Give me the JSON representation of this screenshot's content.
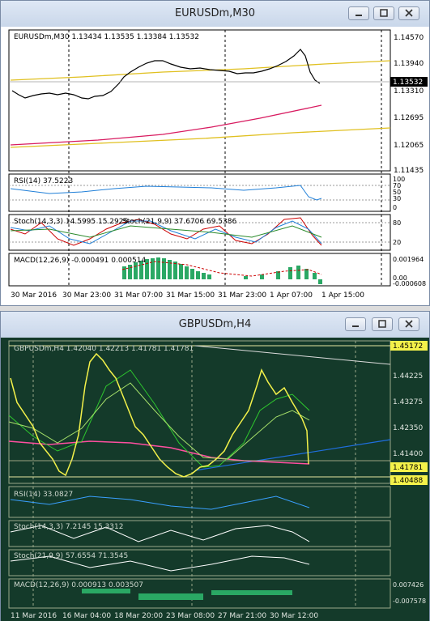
{
  "window1": {
    "title": "EURUSDm,M30",
    "header": "EURUSDm,M30  1.13434 1.13535 1.13384 1.13532",
    "price_labels": [
      "1.14570",
      "1.13940",
      "1.13310",
      "1.12695",
      "1.12065",
      "1.11435"
    ],
    "current_price": "1.13532",
    "rsi_label": "RSI(14) 37.5223",
    "rsi_levels": [
      "100",
      "70",
      "50",
      "30",
      "0"
    ],
    "stoch1_label": "Stoch(14,3,3) 14.5995 15.2925",
    "stoch2_label": "Stoch(21,9,9) 37.6706 69.5386",
    "stoch_levels": [
      "80",
      "20"
    ],
    "macd_label": "MACD(12,26,9) -0.000491 0.000514",
    "macd_levels": [
      "0.001964",
      "0.00",
      "-0.000608"
    ],
    "time_labels": [
      "30 Mar 2016",
      "30 Mar 23:00",
      "31 Mar 07:00",
      "31 Mar 15:00",
      "31 Mar 23:00",
      "1 Apr 07:00",
      "1 Apr 15:00"
    ]
  },
  "window2": {
    "title": "GBPUSDm,H4",
    "header": "GBPUSDm,H4  1.42040 1.42213 1.41781 1.41781",
    "price_labels": [
      "1.45172",
      "1.44225",
      "1.43275",
      "1.42350",
      "1.41400",
      "1.40488"
    ],
    "current_price": "1.41781",
    "rsi_label": "RSI(14) 33.0827",
    "stoch1_label": "Stoch(14,3,3) 7.2145 15.3312",
    "stoch2_label": "Stoch(21,9,9) 57.6554 71.3545",
    "macd_label": "MACD(12,26,9) 0.000913 0.003507",
    "macd_levels": [
      "0.007426",
      "-0.007578"
    ],
    "time_labels": [
      "11 Mar 2016",
      "16 Mar 04:00",
      "18 Mar 20:00",
      "23 Mar 08:00",
      "27 Mar 21:00",
      "30 Mar 12:00"
    ]
  },
  "colors": {
    "w1_bg": "#ffffff",
    "w2_bg": "#143a2a",
    "w2_candle": "#f4f24a",
    "sma_red": "#d81b60",
    "green": "#2ec82e",
    "blue_line": "#1f6fe0"
  },
  "buttons": {
    "minimize": "minimize-icon",
    "maximize": "maximize-icon",
    "close": "close-icon"
  }
}
